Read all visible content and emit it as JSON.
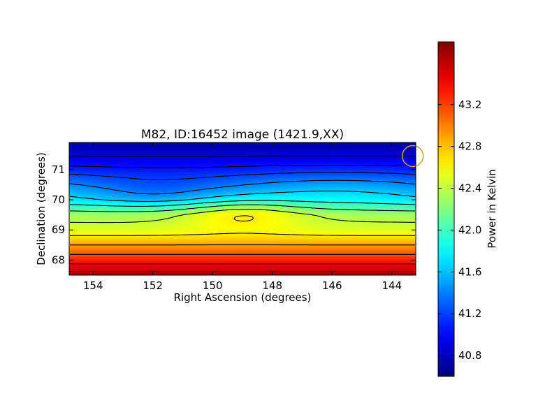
{
  "chart_data": {
    "type": "heatmap",
    "title": "M82, ID:16452 image (1421.9,XX)",
    "xlabel": "Right Ascension (degrees)",
    "ylabel": "Declination (degrees)",
    "xlim": [
      154.8,
      143.2
    ],
    "ylim": [
      67.5,
      71.9
    ],
    "x_ticks": [
      154,
      152,
      150,
      148,
      146,
      144
    ],
    "y_ticks": [
      68,
      69,
      70,
      71
    ],
    "colorbar": {
      "label": "Power in Kelvin",
      "range": [
        40.6,
        43.8
      ],
      "ticks": [
        40.8,
        41.2,
        41.6,
        42.0,
        42.4,
        42.8,
        43.2
      ],
      "colormap": "jet"
    },
    "contour_levels": [
      40.9,
      41.05,
      41.2,
      41.4,
      41.65,
      41.9,
      42.15,
      42.4,
      42.65,
      42.9,
      43.15,
      43.4,
      43.6
    ],
    "contour_color": "#000000",
    "beam_marker": {
      "ra": 143.3,
      "dec": 71.45,
      "radius_deg": 0.35,
      "color": "#c8a040"
    },
    "field_model": {
      "description_values": [
        {
          "dec": 71.9,
          "value": 40.7
        },
        {
          "dec": 71.0,
          "value": 41.1
        },
        {
          "dec": 70.0,
          "value": 41.7
        },
        {
          "dec": 69.5,
          "value": 42.3
        },
        {
          "dec": 69.0,
          "value": 42.5
        },
        {
          "dec": 68.5,
          "value": 42.9
        },
        {
          "dec": 68.0,
          "value": 43.3
        },
        {
          "dec": 67.5,
          "value": 43.7
        }
      ],
      "bump_center": {
        "ra": 149.0,
        "dec": 69.55,
        "amplitude": 0.35
      }
    }
  }
}
